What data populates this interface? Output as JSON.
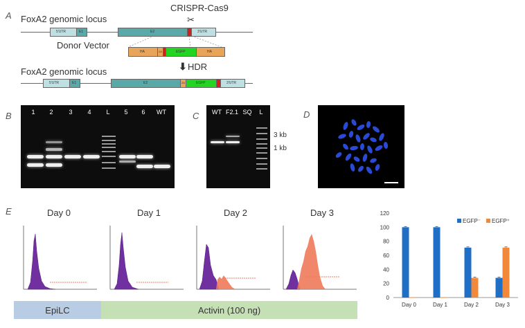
{
  "panel_a": {
    "label": "A",
    "locus_top": "FoxA2 genomic locus",
    "crispr": "CRISPR-Cas9",
    "donor": "Donor Vector",
    "hdr": "HDR",
    "locus_bottom": "FoxA2 genomic locus",
    "seg_5utr": "5'UTR",
    "seg_e1": "E1",
    "seg_e2": "E2",
    "seg_3utr": "3'UTR",
    "seg_ha": "HA",
    "seg_egfp": "EGFP",
    "seg_2a": "2A",
    "colors": {
      "exon": "#5aa9a9",
      "utr": "#bfe0e3",
      "ha": "#e8a55a",
      "egfp": "#23d423",
      "stop": "#d21f1f"
    }
  },
  "panel_b": {
    "label": "B",
    "lanes": [
      "1",
      "2",
      "3",
      "4",
      "L",
      "5",
      "6",
      "WT"
    ]
  },
  "panel_c": {
    "label": "C",
    "lanes": [
      "WT",
      "F2.1",
      "SQ",
      "L"
    ],
    "marker_3kb": "3 kb",
    "marker_1kb": "1 kb"
  },
  "panel_d": {
    "label": "D"
  },
  "panel_e": {
    "label": "E",
    "days": [
      "Day 0",
      "Day 1",
      "Day 2",
      "Day 3"
    ],
    "bar_epilc": "EpiLC",
    "bar_activin": "Activin (100 ng)",
    "colors": {
      "epilc": "#b8cce4",
      "activin": "#c5e0b4",
      "hist_neg": "#7030a0",
      "hist_pos": "#f07a5a"
    }
  },
  "chart_data": {
    "type": "bar",
    "categories": [
      "Day 0",
      "Day 1",
      "Day 2",
      "Day 3"
    ],
    "series": [
      {
        "name": "EGFP⁻",
        "values": [
          100,
          100,
          71,
          28
        ],
        "color": "#1f6fc6"
      },
      {
        "name": "EGFP⁺",
        "values": [
          0,
          0,
          28,
          71
        ],
        "color": "#f2893a"
      }
    ],
    "ylim": [
      0,
      120
    ],
    "yticks": [
      "0",
      "20",
      "40",
      "60",
      "80",
      "100",
      "120"
    ],
    "legend": "top-right",
    "grid": false
  }
}
